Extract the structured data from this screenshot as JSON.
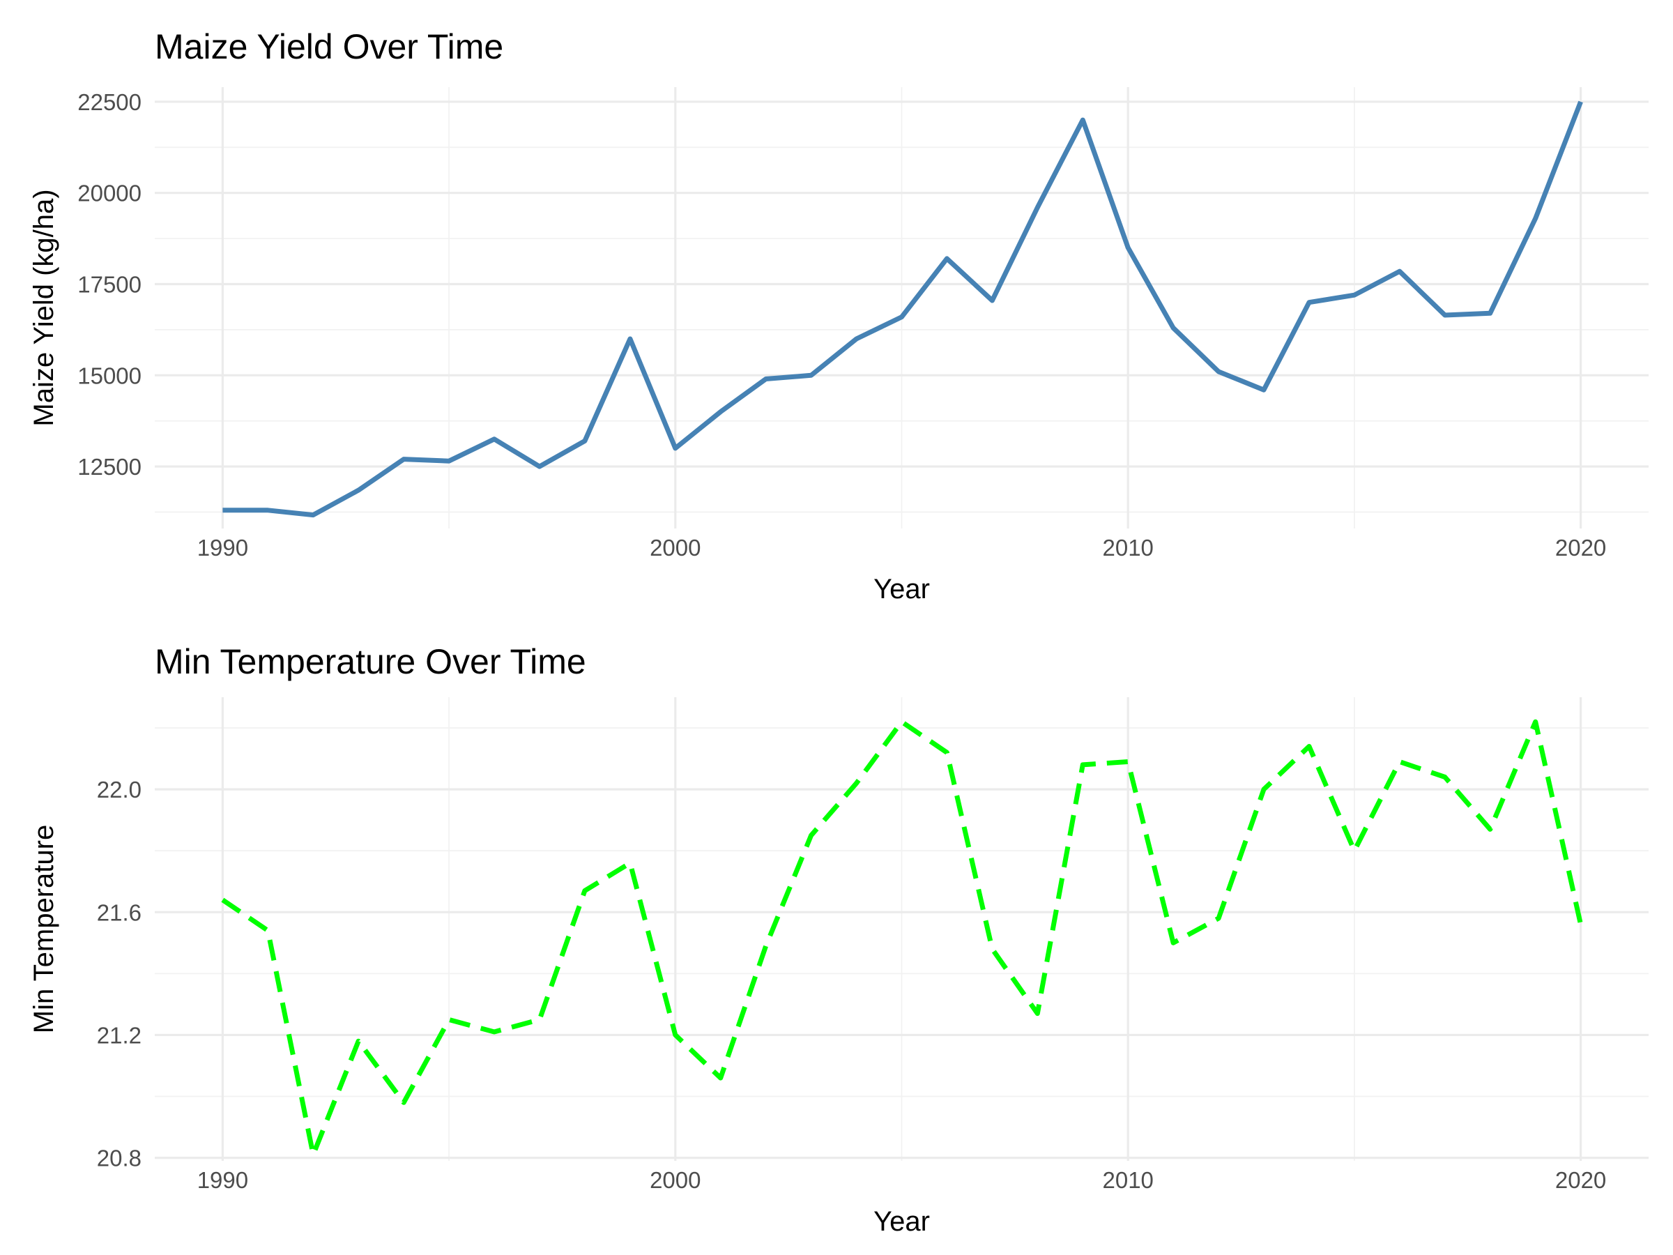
{
  "colors": {
    "maize_line": "#4682b4",
    "temperature_line": "#00ff00"
  },
  "chart_data": [
    {
      "type": "line",
      "title": "Maize Yield Over Time",
      "xlabel": "Year",
      "ylabel": "Maize Yield (kg/ha)",
      "xlim": [
        1988.5,
        2021.5
      ],
      "ylim": [
        10800,
        22900
      ],
      "xticks": [
        1990,
        2000,
        2010,
        2020
      ],
      "yticks": [
        12500,
        15000,
        17500,
        20000,
        22500
      ],
      "x_tick_labels": [
        "1990",
        "2000",
        "2010",
        "2020"
      ],
      "y_tick_labels": [
        "12500",
        "15000",
        "17500",
        "20000",
        "22500"
      ],
      "grid": true,
      "line_style": "solid",
      "x": [
        1990,
        1991,
        1992,
        1993,
        1994,
        1995,
        1996,
        1997,
        1998,
        1999,
        2000,
        2001,
        2002,
        2003,
        2004,
        2005,
        2006,
        2007,
        2008,
        2009,
        2010,
        2011,
        2012,
        2013,
        2014,
        2015,
        2016,
        2017,
        2018,
        2019,
        2020
      ],
      "values": [
        11300,
        11300,
        11170,
        11850,
        12700,
        12650,
        13250,
        12500,
        13200,
        16000,
        13000,
        14000,
        14900,
        15000,
        16000,
        16600,
        18200,
        17050,
        19600,
        22000,
        18500,
        16300,
        15100,
        14600,
        17000,
        17200,
        17850,
        16650,
        16700,
        19300,
        22500
      ]
    },
    {
      "type": "line",
      "title": "Min Temperature Over Time",
      "xlabel": "Year",
      "ylabel": "Min Temperature",
      "xlim": [
        1988.5,
        2021.5
      ],
      "ylim": [
        20.79,
        22.3
      ],
      "xticks": [
        1990,
        2000,
        2010,
        2020
      ],
      "yticks": [
        20.8,
        21.2,
        21.6,
        22.0
      ],
      "x_tick_labels": [
        "1990",
        "2000",
        "2010",
        "2020"
      ],
      "y_tick_labels": [
        "20.8",
        "21.2",
        "21.6",
        "22.0"
      ],
      "grid": true,
      "line_style": "dashed",
      "x": [
        1990,
        1991,
        1992,
        1993,
        1994,
        1995,
        1996,
        1997,
        1998,
        1999,
        2000,
        2001,
        2002,
        2003,
        2004,
        2005,
        2006,
        2007,
        2008,
        2009,
        2010,
        2011,
        2012,
        2013,
        2014,
        2015,
        2016,
        2017,
        2018,
        2019,
        2020
      ],
      "values": [
        21.64,
        21.54,
        20.81,
        21.18,
        20.98,
        21.25,
        21.21,
        21.25,
        21.67,
        21.76,
        21.2,
        21.06,
        21.49,
        21.85,
        22.02,
        22.22,
        22.12,
        21.48,
        21.27,
        22.08,
        22.09,
        21.5,
        21.58,
        22.0,
        22.14,
        21.8,
        22.09,
        22.04,
        21.87,
        22.22,
        21.56
      ]
    }
  ]
}
